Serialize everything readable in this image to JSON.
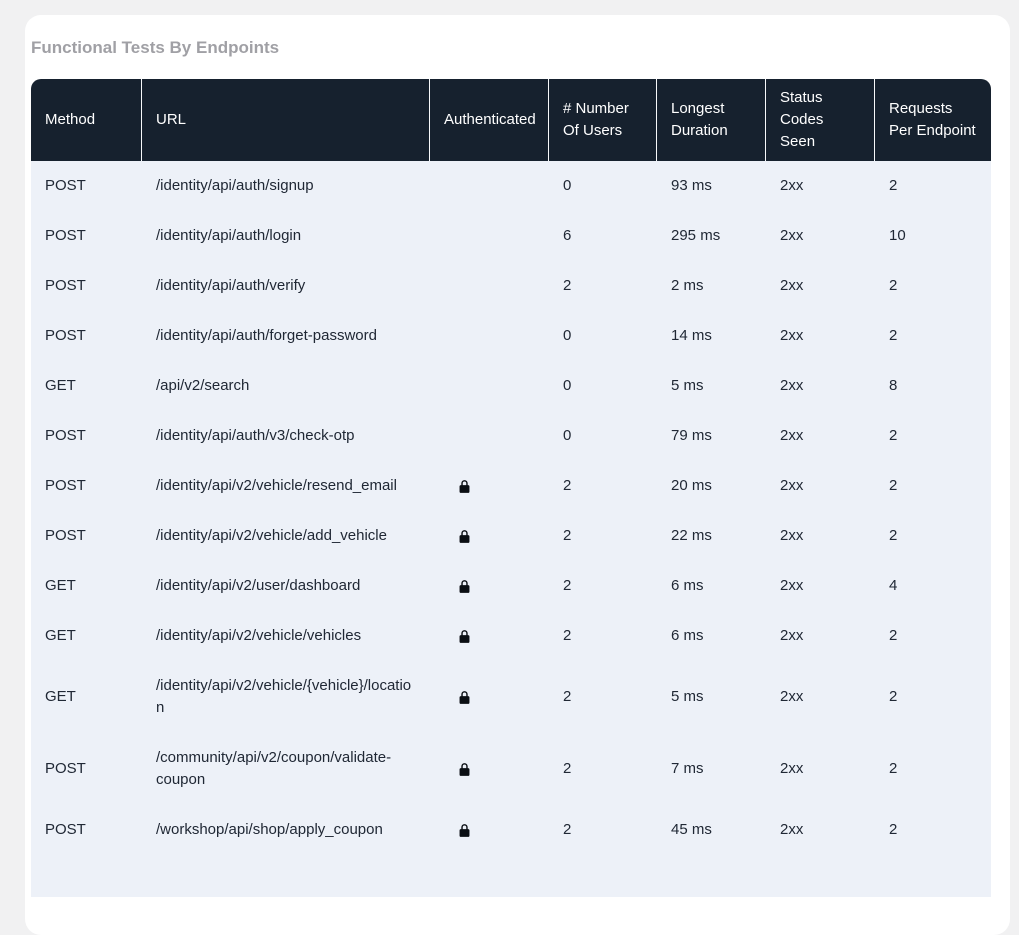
{
  "title": "Functional Tests By Endpoints",
  "colors": {
    "header_bg": "#16212e",
    "row_bg": "#edf1f8",
    "card_bg": "#ffffff",
    "page_bg": "#f1f1f2",
    "title_text": "#a0a0a5",
    "header_text": "#ffffff",
    "body_text": "#202835",
    "lock_icon": "#0b0f14"
  },
  "table": {
    "columns": [
      "Method",
      "URL",
      "Authenticated",
      "# Number Of Users",
      "Longest Duration",
      "Status Codes Seen",
      "Requests Per Endpoint"
    ],
    "authenticated_icon": "lock-icon",
    "rows": [
      {
        "method": "POST",
        "url": "/identity/api/auth/signup",
        "authenticated": false,
        "users": "0",
        "longest_duration": "93 ms",
        "status_codes": "2xx",
        "requests": "2"
      },
      {
        "method": "POST",
        "url": "/identity/api/auth/login",
        "authenticated": false,
        "users": "6",
        "longest_duration": "295 ms",
        "status_codes": "2xx",
        "requests": "10"
      },
      {
        "method": "POST",
        "url": "/identity/api/auth/verify",
        "authenticated": false,
        "users": "2",
        "longest_duration": "2 ms",
        "status_codes": "2xx",
        "requests": "2"
      },
      {
        "method": "POST",
        "url": "/identity/api/auth/forget-password",
        "authenticated": false,
        "users": "0",
        "longest_duration": "14 ms",
        "status_codes": "2xx",
        "requests": "2"
      },
      {
        "method": "GET",
        "url": "/api/v2/search",
        "authenticated": false,
        "users": "0",
        "longest_duration": "5 ms",
        "status_codes": "2xx",
        "requests": "8"
      },
      {
        "method": "POST",
        "url": "/identity/api/auth/v3/check-otp",
        "authenticated": false,
        "users": "0",
        "longest_duration": "79 ms",
        "status_codes": "2xx",
        "requests": "2"
      },
      {
        "method": "POST",
        "url": "/identity/api/v2/vehicle/resend_email",
        "authenticated": true,
        "users": "2",
        "longest_duration": "20 ms",
        "status_codes": "2xx",
        "requests": "2"
      },
      {
        "method": "POST",
        "url": "/identity/api/v2/vehicle/add_vehicle",
        "authenticated": true,
        "users": "2",
        "longest_duration": "22 ms",
        "status_codes": "2xx",
        "requests": "2"
      },
      {
        "method": "GET",
        "url": "/identity/api/v2/user/dashboard",
        "authenticated": true,
        "users": "2",
        "longest_duration": "6 ms",
        "status_codes": "2xx",
        "requests": "4"
      },
      {
        "method": "GET",
        "url": "/identity/api/v2/vehicle/vehicles",
        "authenticated": true,
        "users": "2",
        "longest_duration": "6 ms",
        "status_codes": "2xx",
        "requests": "2"
      },
      {
        "method": "GET",
        "url": "/identity/api/v2/vehicle/{vehicle}/location",
        "authenticated": true,
        "users": "2",
        "longest_duration": "5 ms",
        "status_codes": "2xx",
        "requests": "2"
      },
      {
        "method": "POST",
        "url": "/community/api/v2/coupon/validate-coupon",
        "authenticated": true,
        "users": "2",
        "longest_duration": "7 ms",
        "status_codes": "2xx",
        "requests": "2"
      },
      {
        "method": "POST",
        "url": "/workshop/api/shop/apply_coupon",
        "authenticated": true,
        "users": "2",
        "longest_duration": "45 ms",
        "status_codes": "2xx",
        "requests": "2"
      }
    ]
  }
}
